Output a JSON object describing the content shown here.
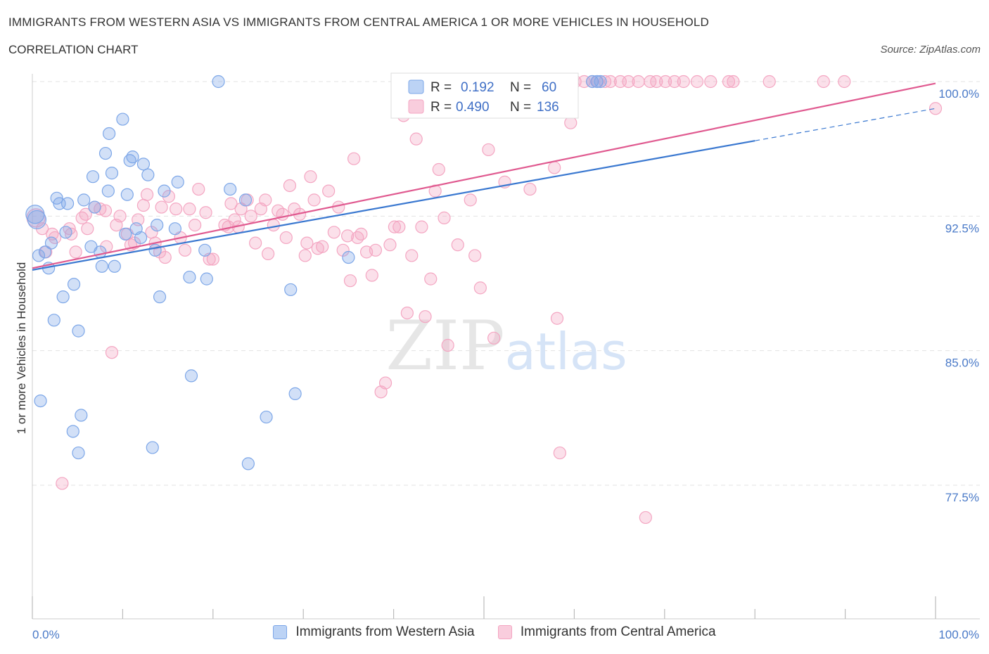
{
  "title": "IMMIGRANTS FROM WESTERN ASIA VS IMMIGRANTS FROM CENTRAL AMERICA 1 OR MORE VEHICLES IN HOUSEHOLD",
  "subtitle": "CORRELATION CHART",
  "source": "Source: ZipAtlas.com",
  "watermark": "ZIPatlas",
  "legend": {
    "r_label": "R =",
    "n_label": "N =",
    "rows": [
      {
        "series": "Immigrants from Western Asia",
        "r": "0.192",
        "n": "60"
      },
      {
        "series": "Immigrants from Central America",
        "r": "0.490",
        "n": "136"
      }
    ]
  },
  "chart_data": {
    "type": "scatter",
    "title": "IMMIGRANTS FROM WESTERN ASIA VS IMMIGRANTS FROM CENTRAL AMERICA 1 OR MORE VEHICLES IN HOUSEHOLD",
    "xlabel": "",
    "ylabel": "1 or more Vehicles in Household",
    "xlim": [
      0,
      100
    ],
    "ylim": [
      70,
      100.5
    ],
    "x_tick_labels": [
      "0.0%",
      "100.0%"
    ],
    "y_ticks": [
      77.5,
      85.0,
      92.5,
      100.0
    ],
    "y_tick_labels": [
      "77.5%",
      "85.0%",
      "92.5%",
      "100.0%"
    ],
    "grid": true,
    "legend_position": "top-center",
    "series": [
      {
        "name": "Immigrants from Western Asia",
        "color": "#7da7e8",
        "line_color": "#3a78d0",
        "trend": {
          "x0": 0,
          "y0": 89.5,
          "x1": 80,
          "y1": 96.7,
          "dashed_to_x": 100,
          "dashed_to_y": 98.5
        },
        "points": [
          [
            0.5,
            92.3
          ],
          [
            0.7,
            90.3
          ],
          [
            0.9,
            82.2
          ],
          [
            1.4,
            90.5
          ],
          [
            1.8,
            89.6
          ],
          [
            2.1,
            91.0
          ],
          [
            2.4,
            86.7
          ],
          [
            2.7,
            93.5
          ],
          [
            3.0,
            93.2
          ],
          [
            3.4,
            88.0
          ],
          [
            3.7,
            91.6
          ],
          [
            3.9,
            93.2
          ],
          [
            4.5,
            80.5
          ],
          [
            4.6,
            88.7
          ],
          [
            5.1,
            86.1
          ],
          [
            5.1,
            79.3
          ],
          [
            5.4,
            81.4
          ],
          [
            5.7,
            93.4
          ],
          [
            6.5,
            90.8
          ],
          [
            6.7,
            94.7
          ],
          [
            6.9,
            93.0
          ],
          [
            7.5,
            90.5
          ],
          [
            7.7,
            89.7
          ],
          [
            8.1,
            96.0
          ],
          [
            8.4,
            93.9
          ],
          [
            8.5,
            97.1
          ],
          [
            8.8,
            94.9
          ],
          [
            9.1,
            89.7
          ],
          [
            10.0,
            97.9
          ],
          [
            10.3,
            91.5
          ],
          [
            10.5,
            93.7
          ],
          [
            10.8,
            95.6
          ],
          [
            11.1,
            95.8
          ],
          [
            11.5,
            91.8
          ],
          [
            12.0,
            91.3
          ],
          [
            12.3,
            95.4
          ],
          [
            12.8,
            94.8
          ],
          [
            13.3,
            79.6
          ],
          [
            13.6,
            90.6
          ],
          [
            13.8,
            92.0
          ],
          [
            14.1,
            88.0
          ],
          [
            14.6,
            93.9
          ],
          [
            15.8,
            91.8
          ],
          [
            16.1,
            94.4
          ],
          [
            17.4,
            89.1
          ],
          [
            17.6,
            83.6
          ],
          [
            19.1,
            90.6
          ],
          [
            19.3,
            89.0
          ],
          [
            20.6,
            100.0
          ],
          [
            21.9,
            94.0
          ],
          [
            23.6,
            93.4
          ],
          [
            23.9,
            78.7
          ],
          [
            25.9,
            81.3
          ],
          [
            28.6,
            88.4
          ],
          [
            29.1,
            82.6
          ],
          [
            35.0,
            90.2
          ],
          [
            62.0,
            100.0
          ],
          [
            62.5,
            100.0
          ],
          [
            62.9,
            100.0
          ],
          [
            0.3,
            92.6
          ]
        ]
      },
      {
        "name": "Immigrants from Central America",
        "color": "#f4a6c2",
        "line_color": "#e05a90",
        "trend": {
          "x0": 0,
          "y0": 89.6,
          "x1": 100,
          "y1": 99.9
        },
        "points": [
          [
            0.4,
            92.4
          ],
          [
            1.1,
            91.8
          ],
          [
            1.5,
            90.5
          ],
          [
            2.2,
            91.5
          ],
          [
            2.5,
            91.3
          ],
          [
            3.3,
            77.6
          ],
          [
            4.1,
            91.8
          ],
          [
            4.3,
            91.5
          ],
          [
            4.8,
            90.5
          ],
          [
            5.5,
            92.4
          ],
          [
            6.1,
            91.8
          ],
          [
            6.9,
            93.0
          ],
          [
            7.5,
            92.9
          ],
          [
            8.2,
            90.8
          ],
          [
            8.8,
            84.9
          ],
          [
            9.3,
            92.0
          ],
          [
            9.7,
            92.5
          ],
          [
            10.5,
            91.5
          ],
          [
            10.9,
            90.9
          ],
          [
            11.3,
            91.0
          ],
          [
            11.7,
            92.3
          ],
          [
            12.3,
            93.1
          ],
          [
            12.7,
            93.7
          ],
          [
            13.2,
            91.6
          ],
          [
            13.6,
            91.0
          ],
          [
            14.3,
            93.0
          ],
          [
            14.7,
            90.2
          ],
          [
            15.1,
            93.6
          ],
          [
            15.9,
            92.9
          ],
          [
            16.4,
            91.3
          ],
          [
            16.9,
            90.6
          ],
          [
            17.4,
            92.9
          ],
          [
            18.0,
            92.0
          ],
          [
            18.4,
            94.0
          ],
          [
            19.2,
            92.7
          ],
          [
            19.6,
            90.1
          ],
          [
            20.0,
            90.1
          ],
          [
            21.3,
            92.0
          ],
          [
            21.7,
            91.9
          ],
          [
            22.0,
            93.2
          ],
          [
            22.4,
            92.3
          ],
          [
            22.8,
            91.9
          ],
          [
            23.1,
            92.9
          ],
          [
            23.8,
            93.4
          ],
          [
            24.2,
            92.5
          ],
          [
            24.7,
            91.0
          ],
          [
            25.3,
            92.9
          ],
          [
            25.8,
            93.4
          ],
          [
            26.1,
            90.4
          ],
          [
            26.7,
            92.0
          ],
          [
            27.2,
            92.8
          ],
          [
            27.7,
            92.6
          ],
          [
            28.1,
            91.3
          ],
          [
            28.5,
            94.2
          ],
          [
            29.0,
            92.9
          ],
          [
            29.6,
            92.6
          ],
          [
            30.2,
            90.3
          ],
          [
            30.8,
            94.7
          ],
          [
            31.2,
            93.4
          ],
          [
            31.6,
            90.7
          ],
          [
            32.1,
            90.8
          ],
          [
            32.8,
            93.9
          ],
          [
            33.4,
            91.6
          ],
          [
            33.9,
            93.0
          ],
          [
            34.4,
            90.6
          ],
          [
            34.9,
            91.4
          ],
          [
            35.2,
            88.9
          ],
          [
            35.6,
            95.7
          ],
          [
            36.0,
            91.3
          ],
          [
            36.4,
            91.5
          ],
          [
            37.0,
            90.5
          ],
          [
            37.6,
            89.2
          ],
          [
            38.0,
            90.6
          ],
          [
            38.6,
            82.7
          ],
          [
            39.1,
            83.2
          ],
          [
            39.6,
            90.9
          ],
          [
            40.1,
            91.9
          ],
          [
            40.6,
            91.9
          ],
          [
            41.1,
            98.1
          ],
          [
            41.5,
            87.1
          ],
          [
            42.0,
            90.3
          ],
          [
            42.5,
            96.8
          ],
          [
            43.1,
            91.9
          ],
          [
            43.5,
            86.9
          ],
          [
            44.1,
            89.0
          ],
          [
            44.6,
            93.9
          ],
          [
            45.0,
            95.1
          ],
          [
            45.6,
            92.4
          ],
          [
            46.0,
            85.3
          ],
          [
            46.5,
            100.0
          ],
          [
            47.1,
            90.9
          ],
          [
            48.1,
            100.0
          ],
          [
            48.5,
            93.4
          ],
          [
            49.0,
            90.3
          ],
          [
            49.6,
            88.5
          ],
          [
            49.9,
            100.0
          ],
          [
            50.5,
            96.2
          ],
          [
            51.1,
            85.7
          ],
          [
            51.8,
            100.0
          ],
          [
            52.4,
            100.0
          ],
          [
            53.5,
            100.0
          ],
          [
            54.0,
            100.0
          ],
          [
            55.1,
            94.0
          ],
          [
            55.6,
            100.0
          ],
          [
            56.1,
            100.0
          ],
          [
            57.8,
            95.2
          ],
          [
            58.1,
            86.8
          ],
          [
            58.4,
            79.3
          ],
          [
            59.6,
            97.7
          ],
          [
            60.1,
            100.0
          ],
          [
            61.1,
            100.0
          ],
          [
            62.0,
            100.0
          ],
          [
            62.6,
            100.0
          ],
          [
            63.4,
            100.0
          ],
          [
            64.0,
            100.0
          ],
          [
            65.1,
            100.0
          ],
          [
            66.0,
            100.0
          ],
          [
            67.1,
            100.0
          ],
          [
            67.9,
            75.7
          ],
          [
            68.4,
            100.0
          ],
          [
            69.1,
            100.0
          ],
          [
            70.1,
            100.0
          ],
          [
            71.1,
            100.0
          ],
          [
            72.1,
            100.0
          ],
          [
            73.6,
            100.0
          ],
          [
            75.1,
            100.0
          ],
          [
            77.1,
            100.0
          ],
          [
            77.6,
            100.0
          ],
          [
            81.6,
            100.0
          ],
          [
            87.6,
            100.0
          ],
          [
            89.9,
            100.0
          ],
          [
            100.0,
            98.5
          ],
          [
            52.3,
            94.4
          ],
          [
            44.2,
            100.0
          ],
          [
            30.4,
            91.0
          ],
          [
            14.1,
            90.5
          ],
          [
            8.1,
            92.8
          ],
          [
            5.9,
            92.6
          ]
        ]
      }
    ]
  }
}
